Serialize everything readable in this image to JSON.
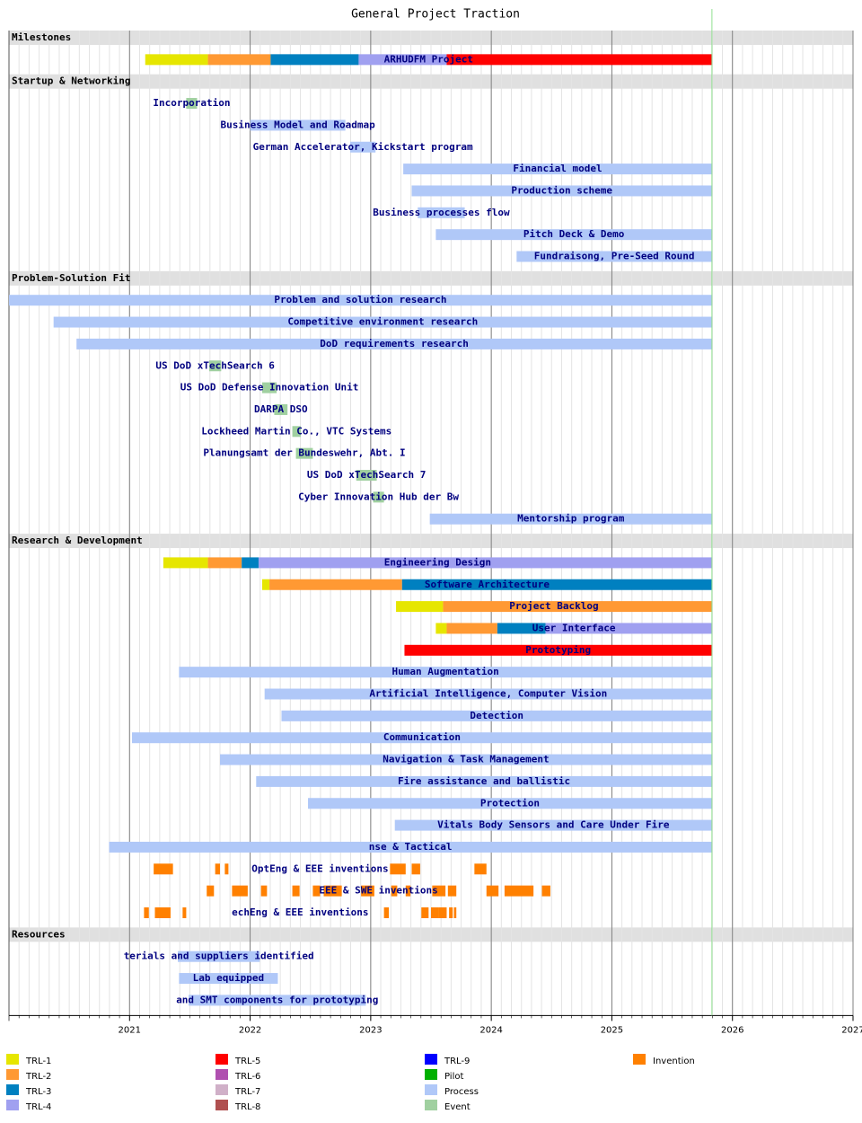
{
  "chart_data": {
    "type": "gantt",
    "title": "General Project Traction",
    "xlim": [
      2020,
      2027
    ],
    "xticks": [
      2021,
      2022,
      2023,
      2024,
      2025,
      2026,
      2027
    ],
    "today": 2025.83,
    "legend": [
      {
        "name": "TRL-1",
        "color": "#e6e600"
      },
      {
        "name": "TRL-2",
        "color": "#ff9933"
      },
      {
        "name": "TRL-3",
        "color": "#0080c0"
      },
      {
        "name": "TRL-4",
        "color": "#a0a0f0"
      },
      {
        "name": "TRL-5",
        "color": "#ff0000"
      },
      {
        "name": "TRL-6",
        "color": "#b050b0"
      },
      {
        "name": "TRL-7",
        "color": "#d0b0c8"
      },
      {
        "name": "TRL-8",
        "color": "#b05050"
      },
      {
        "name": "TRL-9",
        "color": "#0000ff"
      },
      {
        "name": "Pilot",
        "color": "#00b000"
      },
      {
        "name": "Process",
        "color": "#b0c8f8"
      },
      {
        "name": "Event",
        "color": "#a0d0a0"
      },
      {
        "name": "Invention",
        "color": "#ff8000"
      }
    ],
    "sections": [
      {
        "name": "Milestones",
        "tasks": [
          {
            "label": "ARHUDFM Project",
            "segments": [
              {
                "start": 2021.13,
                "end": 2021.65,
                "kind": "TRL-1"
              },
              {
                "start": 2021.65,
                "end": 2022.17,
                "kind": "TRL-2"
              },
              {
                "start": 2022.17,
                "end": 2022.9,
                "kind": "TRL-3"
              },
              {
                "start": 2022.9,
                "end": 2023.63,
                "kind": "TRL-4"
              },
              {
                "start": 2023.63,
                "end": 2025.83,
                "kind": "TRL-5"
              }
            ]
          }
        ]
      },
      {
        "name": "Startup & Networking",
        "tasks": [
          {
            "label": "Incorporation",
            "segments": [
              {
                "start": 2021.47,
                "end": 2021.56,
                "kind": "Event"
              }
            ]
          },
          {
            "label": "Business Model and Roadmap",
            "segments": [
              {
                "start": 2022.0,
                "end": 2022.79,
                "kind": "Process"
              }
            ]
          },
          {
            "label": "German Accelerator, Kickstart program",
            "segments": [
              {
                "start": 2022.83,
                "end": 2023.04,
                "kind": "Process"
              }
            ]
          },
          {
            "label": "Financial model",
            "segments": [
              {
                "start": 2023.27,
                "end": 2025.83,
                "kind": "Process"
              }
            ]
          },
          {
            "label": "Production scheme",
            "segments": [
              {
                "start": 2023.34,
                "end": 2025.83,
                "kind": "Process"
              }
            ]
          },
          {
            "label": "Business processes flow",
            "segments": [
              {
                "start": 2023.39,
                "end": 2023.78,
                "kind": "Process"
              }
            ]
          },
          {
            "label": "Pitch Deck & Demo",
            "segments": [
              {
                "start": 2023.54,
                "end": 2025.83,
                "kind": "Process"
              }
            ]
          },
          {
            "label": "Fundraisong, Pre-Seed Round",
            "segments": [
              {
                "start": 2024.21,
                "end": 2025.83,
                "kind": "Process"
              }
            ]
          }
        ]
      },
      {
        "name": "Problem-Solution Fit",
        "tasks": [
          {
            "label": "Problem and solution research",
            "segments": [
              {
                "start": 2020.0,
                "end": 2025.83,
                "kind": "Process"
              }
            ]
          },
          {
            "label": "Competitive environment research",
            "segments": [
              {
                "start": 2020.37,
                "end": 2025.83,
                "kind": "Process"
              }
            ]
          },
          {
            "label": "DoD requirements research",
            "segments": [
              {
                "start": 2020.56,
                "end": 2025.83,
                "kind": "Process"
              }
            ]
          },
          {
            "label": "US DoD xTechSearch 6",
            "segments": [
              {
                "start": 2021.66,
                "end": 2021.76,
                "kind": "Event"
              }
            ]
          },
          {
            "label": "US DoD Defense Innovation Unit",
            "segments": [
              {
                "start": 2022.1,
                "end": 2022.22,
                "kind": "Event"
              }
            ]
          },
          {
            "label": "DARPA DSO",
            "segments": [
              {
                "start": 2022.2,
                "end": 2022.31,
                "kind": "Event"
              }
            ]
          },
          {
            "label": "Lockheed Martin Co., VTC Systems",
            "segments": [
              {
                "start": 2022.35,
                "end": 2022.42,
                "kind": "Event"
              }
            ]
          },
          {
            "label": "Planungsamt der Bundeswehr, Abt. I",
            "segments": [
              {
                "start": 2022.38,
                "end": 2022.52,
                "kind": "Event"
              }
            ]
          },
          {
            "label": "US DoD xTechSearch 7",
            "segments": [
              {
                "start": 2022.88,
                "end": 2023.05,
                "kind": "Event"
              }
            ]
          },
          {
            "label": "Cyber Innovation Hub der Bw",
            "segments": [
              {
                "start": 2023.02,
                "end": 2023.11,
                "kind": "Event"
              }
            ]
          },
          {
            "label": "Mentorship program",
            "segments": [
              {
                "start": 2023.49,
                "end": 2025.83,
                "kind": "Process"
              }
            ]
          }
        ]
      },
      {
        "name": "Research & Development",
        "tasks": [
          {
            "label": "Engineering Design",
            "segments": [
              {
                "start": 2021.28,
                "end": 2021.65,
                "kind": "TRL-1"
              },
              {
                "start": 2021.65,
                "end": 2021.93,
                "kind": "TRL-2"
              },
              {
                "start": 2021.93,
                "end": 2022.07,
                "kind": "TRL-3"
              },
              {
                "start": 2022.07,
                "end": 2025.83,
                "kind": "TRL-4"
              }
            ]
          },
          {
            "label": "Software Architecture",
            "segments": [
              {
                "start": 2022.1,
                "end": 2022.16,
                "kind": "TRL-1"
              },
              {
                "start": 2022.16,
                "end": 2023.26,
                "kind": "TRL-2"
              },
              {
                "start": 2023.26,
                "end": 2025.83,
                "kind": "TRL-3"
              }
            ]
          },
          {
            "label": "Project Backlog",
            "segments": [
              {
                "start": 2023.21,
                "end": 2023.6,
                "kind": "TRL-1"
              },
              {
                "start": 2023.6,
                "end": 2025.83,
                "kind": "TRL-2"
              }
            ]
          },
          {
            "label": "User Interface",
            "segments": [
              {
                "start": 2023.54,
                "end": 2023.63,
                "kind": "TRL-1"
              },
              {
                "start": 2023.63,
                "end": 2024.05,
                "kind": "TRL-2"
              },
              {
                "start": 2024.05,
                "end": 2024.45,
                "kind": "TRL-3"
              },
              {
                "start": 2024.45,
                "end": 2025.83,
                "kind": "TRL-4"
              }
            ]
          },
          {
            "label": "Prototyping",
            "segments": [
              {
                "start": 2023.28,
                "end": 2025.83,
                "kind": "TRL-5"
              }
            ]
          },
          {
            "label": "Human Augmentation",
            "segments": [
              {
                "start": 2021.41,
                "end": 2025.83,
                "kind": "Process"
              }
            ]
          },
          {
            "label": "Artificial Intelligence, Computer Vision",
            "segments": [
              {
                "start": 2022.12,
                "end": 2025.83,
                "kind": "Process"
              }
            ]
          },
          {
            "label": "Detection",
            "segments": [
              {
                "start": 2022.26,
                "end": 2025.83,
                "kind": "Process"
              }
            ]
          },
          {
            "label": "Communication",
            "segments": [
              {
                "start": 2021.02,
                "end": 2025.83,
                "kind": "Process"
              }
            ]
          },
          {
            "label": "Navigation & Task Management",
            "segments": [
              {
                "start": 2021.75,
                "end": 2025.83,
                "kind": "Process"
              }
            ]
          },
          {
            "label": "Fire assistance and ballistic",
            "segments": [
              {
                "start": 2022.05,
                "end": 2025.83,
                "kind": "Process"
              }
            ]
          },
          {
            "label": "Protection",
            "segments": [
              {
                "start": 2022.48,
                "end": 2025.83,
                "kind": "Process"
              }
            ]
          },
          {
            "label": "Vitals Body Sensors and Care Under Fire",
            "segments": [
              {
                "start": 2023.2,
                "end": 2025.83,
                "kind": "Process"
              }
            ]
          },
          {
            "label": "nse & Tactical",
            "segments": [
              {
                "start": 2020.83,
                "end": 2025.83,
                "kind": "Process"
              }
            ]
          },
          {
            "label": "OptEng & EEE inventions",
            "segments": [
              {
                "start": 2021.2,
                "end": 2021.36,
                "kind": "Invention"
              },
              {
                "start": 2021.71,
                "end": 2021.75,
                "kind": "Invention"
              },
              {
                "start": 2021.79,
                "end": 2021.82,
                "kind": "Invention"
              },
              {
                "start": 2023.16,
                "end": 2023.29,
                "kind": "Invention"
              },
              {
                "start": 2023.34,
                "end": 2023.41,
                "kind": "Invention"
              },
              {
                "start": 2023.86,
                "end": 2023.96,
                "kind": "Invention"
              }
            ]
          },
          {
            "label": "EEE & SWE inventions",
            "segments": [
              {
                "start": 2021.64,
                "end": 2021.7,
                "kind": "Invention"
              },
              {
                "start": 2021.85,
                "end": 2021.98,
                "kind": "Invention"
              },
              {
                "start": 2022.09,
                "end": 2022.14,
                "kind": "Invention"
              },
              {
                "start": 2022.35,
                "end": 2022.41,
                "kind": "Invention"
              },
              {
                "start": 2022.52,
                "end": 2022.58,
                "kind": "Invention"
              },
              {
                "start": 2022.61,
                "end": 2022.76,
                "kind": "Invention"
              },
              {
                "start": 2022.92,
                "end": 2023.03,
                "kind": "Invention"
              },
              {
                "start": 2023.17,
                "end": 2023.22,
                "kind": "Invention"
              },
              {
                "start": 2023.29,
                "end": 2023.33,
                "kind": "Invention"
              },
              {
                "start": 2023.51,
                "end": 2023.62,
                "kind": "Invention"
              },
              {
                "start": 2023.64,
                "end": 2023.71,
                "kind": "Invention"
              },
              {
                "start": 2023.96,
                "end": 2024.06,
                "kind": "Invention"
              },
              {
                "start": 2024.11,
                "end": 2024.35,
                "kind": "Invention"
              },
              {
                "start": 2024.42,
                "end": 2024.49,
                "kind": "Invention"
              }
            ]
          },
          {
            "label": "echEng & EEE inventions",
            "segments": [
              {
                "start": 2021.12,
                "end": 2021.16,
                "kind": "Invention"
              },
              {
                "start": 2021.21,
                "end": 2021.34,
                "kind": "Invention"
              },
              {
                "start": 2021.44,
                "end": 2021.47,
                "kind": "Invention"
              },
              {
                "start": 2023.11,
                "end": 2023.15,
                "kind": "Invention"
              },
              {
                "start": 2023.42,
                "end": 2023.48,
                "kind": "Invention"
              },
              {
                "start": 2023.5,
                "end": 2023.56,
                "kind": "Invention"
              },
              {
                "start": 2023.56,
                "end": 2023.63,
                "kind": "Invention"
              },
              {
                "start": 2023.65,
                "end": 2023.68,
                "kind": "Invention"
              },
              {
                "start": 2023.69,
                "end": 2023.71,
                "kind": "Invention"
              }
            ]
          }
        ]
      },
      {
        "name": "Resources",
        "tasks": [
          {
            "label": "terials and suppliers identified",
            "segments": [
              {
                "start": 2021.4,
                "end": 2022.08,
                "kind": "Process"
              }
            ]
          },
          {
            "label": "Lab equipped",
            "segments": [
              {
                "start": 2021.41,
                "end": 2022.23,
                "kind": "Process"
              }
            ]
          },
          {
            "label": "and SMT components for prototyping",
            "segments": [
              {
                "start": 2021.49,
                "end": 2022.96,
                "kind": "Process"
              }
            ]
          }
        ]
      }
    ]
  }
}
